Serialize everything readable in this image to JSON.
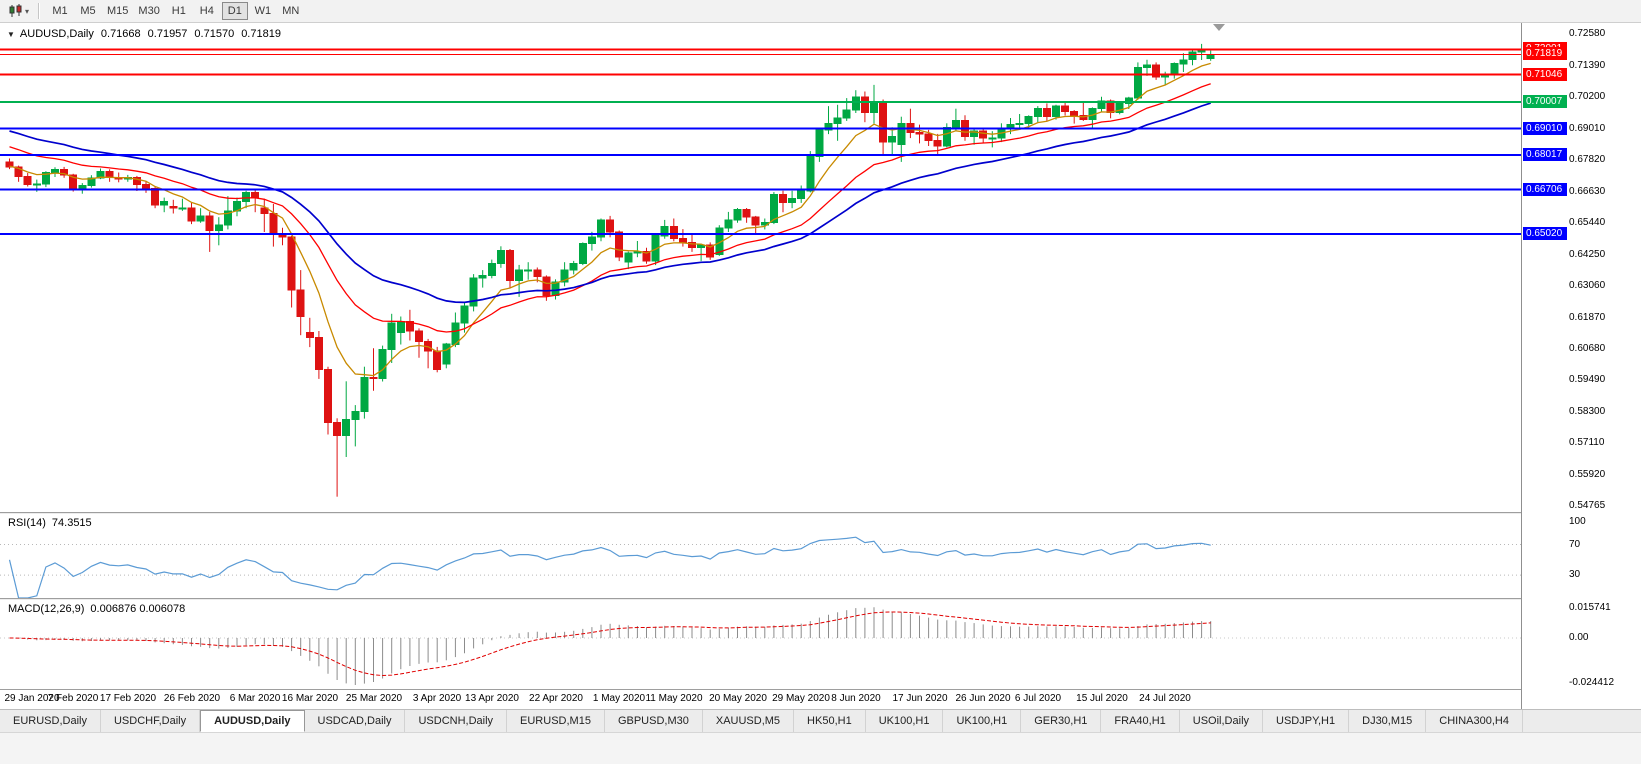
{
  "toolbar": {
    "timeframes": [
      "M1",
      "M5",
      "M15",
      "M30",
      "H1",
      "H4",
      "D1",
      "W1",
      "MN"
    ],
    "selected": "D1"
  },
  "header": {
    "symbol": "AUDUSD,Daily",
    "open": "0.71668",
    "high": "0.71957",
    "low": "0.71570",
    "close": "0.71819"
  },
  "chart_data": {
    "type": "candlestick",
    "title": "AUDUSD,Daily",
    "ylim": [
      0.5452,
      0.73
    ],
    "yticks": [
      "0.72580",
      "0.71390",
      "0.70200",
      "0.69010",
      "0.67820",
      "0.66630",
      "0.65440",
      "0.64250",
      "0.63060",
      "0.61870",
      "0.60680",
      "0.59490",
      "0.58300",
      "0.57110",
      "0.55920",
      "0.54765"
    ],
    "colors": {
      "up": "#00A843",
      "down": "#DE1212"
    },
    "hlines": [
      {
        "price": 0.72001,
        "color": "#FF0000",
        "width": 2,
        "label": "0.72001"
      },
      {
        "price": 0.71046,
        "color": "#FF0000",
        "width": 2,
        "label": "0.71046"
      },
      {
        "price": 0.70007,
        "color": "#00B050",
        "width": 2,
        "label": "0.70007"
      },
      {
        "price": 0.6901,
        "color": "#0000FF",
        "width": 2,
        "label": "0.69010"
      },
      {
        "price": 0.68017,
        "color": "#0000FF",
        "width": 2,
        "label": "0.68017"
      },
      {
        "price": 0.66706,
        "color": "#0000FF",
        "width": 2,
        "label": "0.66706"
      },
      {
        "price": 0.6502,
        "color": "#0000FF",
        "width": 2,
        "label": "0.65020"
      }
    ],
    "bid_line": {
      "price": 0.71819,
      "color": "#FF0000",
      "width": 1,
      "label": "0.71819"
    },
    "moving_averages": [
      {
        "period": 8,
        "color": "#C88A00",
        "seed": 0.676,
        "width": 1.3
      },
      {
        "period": 20,
        "color": "#FF0000",
        "seed": 0.684,
        "width": 1.3
      },
      {
        "period": 34,
        "color": "#0000CD",
        "seed": 0.69,
        "width": 1.7
      }
    ],
    "rsi": {
      "name": "RSI(14)",
      "value": "74.3515",
      "period": 14,
      "color": "#5B9BD5",
      "levels": [
        100,
        70,
        30
      ],
      "range": [
        0,
        110
      ]
    },
    "macd": {
      "name": "MACD(12,26,9)",
      "value": "0.006876 0.006078",
      "fast": 12,
      "slow": 26,
      "signal_period": 9,
      "histogram_color": "#8C8C8C",
      "signal_color": "#E00000",
      "axis_labels": [
        "0.015741",
        "0.00",
        "-0.024412"
      ]
    },
    "xlabels": [
      {
        "text": "29 Jan 2020",
        "index": 0
      },
      {
        "text": "7 Feb 2020",
        "index": 7
      },
      {
        "text": "17 Feb 2020",
        "index": 13
      },
      {
        "text": "26 Feb 2020",
        "index": 20
      },
      {
        "text": "6 Mar 2020",
        "index": 27
      },
      {
        "text": "16 Mar 2020",
        "index": 33
      },
      {
        "text": "25 Mar 2020",
        "index": 40
      },
      {
        "text": "3 Apr 2020",
        "index": 47
      },
      {
        "text": "13 Apr 2020",
        "index": 53
      },
      {
        "text": "22 Apr 2020",
        "index": 60
      },
      {
        "text": "1 May 2020",
        "index": 67
      },
      {
        "text": "11 May 2020",
        "index": 73
      },
      {
        "text": "20 May 2020",
        "index": 80
      },
      {
        "text": "29 May 2020",
        "index": 87
      },
      {
        "text": "8 Jun 2020",
        "index": 93
      },
      {
        "text": "17 Jun 2020",
        "index": 100
      },
      {
        "text": "26 Jun 2020",
        "index": 107
      },
      {
        "text": "6 Jul 2020",
        "index": 113
      },
      {
        "text": "15 Jul 2020",
        "index": 120
      },
      {
        "text": "24 Jul 2020",
        "index": 127
      }
    ],
    "candles": [
      [
        0.6775,
        0.6788,
        0.6748,
        0.6756
      ],
      [
        0.6756,
        0.6761,
        0.67,
        0.672
      ],
      [
        0.672,
        0.6733,
        0.6682,
        0.669
      ],
      [
        0.669,
        0.6708,
        0.6662,
        0.6692
      ],
      [
        0.6692,
        0.674,
        0.668,
        0.6735
      ],
      [
        0.6735,
        0.6755,
        0.6718,
        0.6746
      ],
      [
        0.6746,
        0.6756,
        0.6715,
        0.6725
      ],
      [
        0.6725,
        0.673,
        0.6663,
        0.667
      ],
      [
        0.6668,
        0.6695,
        0.6655,
        0.6685
      ],
      [
        0.6685,
        0.6725,
        0.6678,
        0.6715
      ],
      [
        0.6715,
        0.675,
        0.671,
        0.6738
      ],
      [
        0.6738,
        0.6747,
        0.67,
        0.6716
      ],
      [
        0.6716,
        0.6735,
        0.6698,
        0.671
      ],
      [
        0.671,
        0.6726,
        0.67,
        0.6716
      ],
      [
        0.6716,
        0.6722,
        0.6665,
        0.669
      ],
      [
        0.669,
        0.6701,
        0.6658,
        0.6675
      ],
      [
        0.6675,
        0.6681,
        0.66,
        0.6612
      ],
      [
        0.6612,
        0.664,
        0.6585,
        0.6626
      ],
      [
        0.6606,
        0.6632,
        0.658,
        0.66
      ],
      [
        0.66,
        0.6636,
        0.659,
        0.6601
      ],
      [
        0.6601,
        0.662,
        0.654,
        0.6551
      ],
      [
        0.6551,
        0.66,
        0.6545,
        0.6571
      ],
      [
        0.6571,
        0.6586,
        0.6435,
        0.6516
      ],
      [
        0.6516,
        0.6566,
        0.646,
        0.6536
      ],
      [
        0.6536,
        0.6646,
        0.652,
        0.659
      ],
      [
        0.659,
        0.664,
        0.657,
        0.6626
      ],
      [
        0.6626,
        0.6666,
        0.66,
        0.666
      ],
      [
        0.666,
        0.6672,
        0.6585,
        0.6641
      ],
      [
        0.6601,
        0.6636,
        0.651,
        0.6581
      ],
      [
        0.6581,
        0.6616,
        0.6455,
        0.6501
      ],
      [
        0.6501,
        0.6526,
        0.646,
        0.6491
      ],
      [
        0.6491,
        0.6496,
        0.6225,
        0.6291
      ],
      [
        0.6291,
        0.6366,
        0.612,
        0.6191
      ],
      [
        0.6131,
        0.6186,
        0.6075,
        0.6111
      ],
      [
        0.6111,
        0.6136,
        0.5955,
        0.5991
      ],
      [
        0.5991,
        0.6001,
        0.5745,
        0.5791
      ],
      [
        0.5791,
        0.5806,
        0.551,
        0.5741
      ],
      [
        0.5741,
        0.5946,
        0.566,
        0.5801
      ],
      [
        0.5801,
        0.5856,
        0.57,
        0.5831
      ],
      [
        0.5831,
        0.6001,
        0.5805,
        0.5961
      ],
      [
        0.5961,
        0.6071,
        0.591,
        0.5956
      ],
      [
        0.5956,
        0.6081,
        0.5945,
        0.6066
      ],
      [
        0.6066,
        0.6201,
        0.6015,
        0.6166
      ],
      [
        0.6131,
        0.6191,
        0.6085,
        0.6171
      ],
      [
        0.6171,
        0.6216,
        0.61,
        0.6136
      ],
      [
        0.6136,
        0.6146,
        0.6035,
        0.6096
      ],
      [
        0.6096,
        0.6106,
        0.5995,
        0.6061
      ],
      [
        0.6061,
        0.6076,
        0.598,
        0.5991
      ],
      [
        0.6011,
        0.6091,
        0.5995,
        0.6086
      ],
      [
        0.6086,
        0.6206,
        0.6075,
        0.6166
      ],
      [
        0.6166,
        0.6246,
        0.613,
        0.6231
      ],
      [
        0.6231,
        0.6351,
        0.621,
        0.6336
      ],
      [
        0.6336,
        0.6366,
        0.63,
        0.6346
      ],
      [
        0.6346,
        0.6406,
        0.6335,
        0.6391
      ],
      [
        0.6391,
        0.6456,
        0.6375,
        0.6441
      ],
      [
        0.6441,
        0.6446,
        0.63,
        0.6326
      ],
      [
        0.6326,
        0.6386,
        0.6265,
        0.6366
      ],
      [
        0.6366,
        0.6396,
        0.633,
        0.6366
      ],
      [
        0.6366,
        0.6376,
        0.632,
        0.6341
      ],
      [
        0.6341,
        0.6346,
        0.625,
        0.6271
      ],
      [
        0.6271,
        0.6331,
        0.6255,
        0.6321
      ],
      [
        0.6321,
        0.6396,
        0.6305,
        0.6366
      ],
      [
        0.6366,
        0.6401,
        0.635,
        0.6391
      ],
      [
        0.6391,
        0.6471,
        0.6385,
        0.6466
      ],
      [
        0.6466,
        0.6511,
        0.644,
        0.6491
      ],
      [
        0.6491,
        0.6561,
        0.6475,
        0.6556
      ],
      [
        0.6556,
        0.6571,
        0.649,
        0.6511
      ],
      [
        0.6511,
        0.6516,
        0.64,
        0.6416
      ],
      [
        0.6396,
        0.6436,
        0.637,
        0.6431
      ],
      [
        0.6431,
        0.6476,
        0.6415,
        0.6436
      ],
      [
        0.6436,
        0.6451,
        0.639,
        0.6401
      ],
      [
        0.6401,
        0.6501,
        0.6385,
        0.6496
      ],
      [
        0.6496,
        0.6556,
        0.6485,
        0.6531
      ],
      [
        0.6531,
        0.6561,
        0.6475,
        0.6486
      ],
      [
        0.6486,
        0.6521,
        0.6455,
        0.6471
      ],
      [
        0.6471,
        0.6506,
        0.6435,
        0.6451
      ],
      [
        0.6451,
        0.6466,
        0.64,
        0.6461
      ],
      [
        0.6461,
        0.6471,
        0.6405,
        0.6416
      ],
      [
        0.6426,
        0.6536,
        0.642,
        0.6526
      ],
      [
        0.6526,
        0.6586,
        0.651,
        0.6556
      ],
      [
        0.6556,
        0.6601,
        0.6545,
        0.6596
      ],
      [
        0.6596,
        0.6601,
        0.6545,
        0.6566
      ],
      [
        0.6566,
        0.6571,
        0.6505,
        0.6536
      ],
      [
        0.6536,
        0.6561,
        0.652,
        0.6546
      ],
      [
        0.6546,
        0.6661,
        0.654,
        0.6651
      ],
      [
        0.6651,
        0.6666,
        0.6585,
        0.6621
      ],
      [
        0.6621,
        0.6666,
        0.66,
        0.6636
      ],
      [
        0.6636,
        0.6686,
        0.662,
        0.6666
      ],
      [
        0.6666,
        0.6816,
        0.666,
        0.6796
      ],
      [
        0.6796,
        0.6901,
        0.6775,
        0.6896
      ],
      [
        0.6896,
        0.6986,
        0.688,
        0.6921
      ],
      [
        0.6921,
        0.6991,
        0.6855,
        0.6941
      ],
      [
        0.6941,
        0.7016,
        0.693,
        0.6971
      ],
      [
        0.6971,
        0.7046,
        0.696,
        0.7021
      ],
      [
        0.7021,
        0.7041,
        0.6925,
        0.6961
      ],
      [
        0.6961,
        0.7066,
        0.692,
        0.7001
      ],
      [
        0.7001,
        0.7011,
        0.68,
        0.6851
      ],
      [
        0.6851,
        0.6906,
        0.68,
        0.6871
      ],
      [
        0.6841,
        0.6946,
        0.6775,
        0.6921
      ],
      [
        0.6921,
        0.6976,
        0.6865,
        0.6886
      ],
      [
        0.6886,
        0.6916,
        0.6845,
        0.6881
      ],
      [
        0.6881,
        0.6896,
        0.6835,
        0.6856
      ],
      [
        0.6856,
        0.6881,
        0.6805,
        0.6836
      ],
      [
        0.6836,
        0.6921,
        0.683,
        0.6906
      ],
      [
        0.6906,
        0.6976,
        0.689,
        0.6931
      ],
      [
        0.6931,
        0.6951,
        0.6855,
        0.6871
      ],
      [
        0.6871,
        0.6901,
        0.684,
        0.6891
      ],
      [
        0.6891,
        0.6901,
        0.6845,
        0.6866
      ],
      [
        0.6866,
        0.6891,
        0.683,
        0.6866
      ],
      [
        0.6866,
        0.6921,
        0.685,
        0.6901
      ],
      [
        0.6901,
        0.6941,
        0.688,
        0.6916
      ],
      [
        0.6916,
        0.6956,
        0.69,
        0.6921
      ],
      [
        0.6921,
        0.6951,
        0.6905,
        0.6946
      ],
      [
        0.6946,
        0.6986,
        0.6925,
        0.6976
      ],
      [
        0.6976,
        0.6996,
        0.693,
        0.6946
      ],
      [
        0.6946,
        0.6991,
        0.6935,
        0.6986
      ],
      [
        0.6986,
        0.7001,
        0.695,
        0.6966
      ],
      [
        0.6966,
        0.6971,
        0.692,
        0.6951
      ],
      [
        0.6951,
        0.7001,
        0.693,
        0.6936
      ],
      [
        0.6936,
        0.6981,
        0.69,
        0.6976
      ],
      [
        0.6976,
        0.7021,
        0.6965,
        0.7006
      ],
      [
        0.7006,
        0.7011,
        0.694,
        0.6961
      ],
      [
        0.6961,
        0.7001,
        0.6955,
        0.6996
      ],
      [
        0.6996,
        0.7021,
        0.6975,
        0.7016
      ],
      [
        0.7016,
        0.7151,
        0.701,
        0.7131
      ],
      [
        0.7131,
        0.7161,
        0.71,
        0.7141
      ],
      [
        0.7141,
        0.7151,
        0.7085,
        0.7096
      ],
      [
        0.7096,
        0.7116,
        0.7065,
        0.7106
      ],
      [
        0.7106,
        0.7151,
        0.709,
        0.7146
      ],
      [
        0.7146,
        0.7186,
        0.7115,
        0.7161
      ],
      [
        0.7161,
        0.7198,
        0.714,
        0.7191
      ],
      [
        0.7191,
        0.7221,
        0.716,
        0.7196
      ],
      [
        0.71668,
        0.71957,
        0.7157,
        0.71819
      ]
    ]
  },
  "tabs": {
    "items": [
      {
        "label": "EURUSD,Daily"
      },
      {
        "label": "USDCHF,Daily"
      },
      {
        "label": "AUDUSD,Daily",
        "active": true
      },
      {
        "label": "USDCAD,Daily"
      },
      {
        "label": "USDCNH,Daily"
      },
      {
        "label": "EURUSD,M15"
      },
      {
        "label": "GBPUSD,M30"
      },
      {
        "label": "XAUUSD,M5"
      },
      {
        "label": "HK50,H1"
      },
      {
        "label": "UK100,H1"
      },
      {
        "label": "UK100,H1"
      },
      {
        "label": "GER30,H1"
      },
      {
        "label": "FRA40,H1"
      },
      {
        "label": "USOil,Daily"
      },
      {
        "label": "USDJPY,H1"
      },
      {
        "label": "DJ30,M15"
      },
      {
        "label": "CHINA300,H4"
      }
    ]
  }
}
